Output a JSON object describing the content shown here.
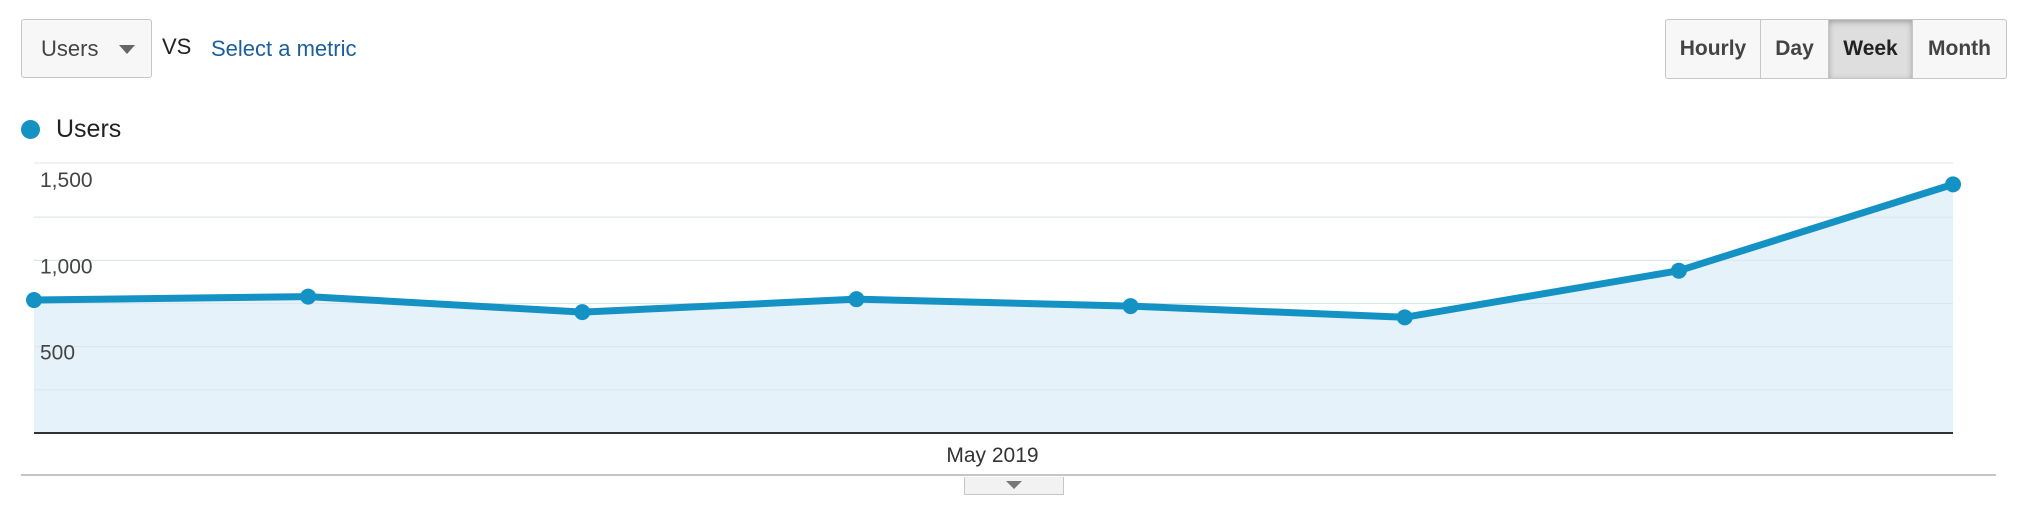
{
  "metric_selector": {
    "label": "Users",
    "icon": "caret-down-icon"
  },
  "vs_label": "VS",
  "select_metric_link": "Select a metric",
  "granularity": {
    "options": [
      "Hourly",
      "Day",
      "Week",
      "Month"
    ],
    "selected": "Week"
  },
  "legend": {
    "label": "Users",
    "color": "#1592c4"
  },
  "expand_icon": "chevron-down-icon",
  "chart_data": {
    "type": "area",
    "series": [
      {
        "name": "Users",
        "color": "#1592c4",
        "fill": "#e6f2f9",
        "values": [
          770,
          790,
          700,
          775,
          735,
          670,
          940,
          1440
        ]
      }
    ],
    "x": [
      "",
      "",
      "",
      "",
      "",
      "",
      "",
      ""
    ],
    "xlabel": "",
    "ylabel": "",
    "x_tick_labels": [
      "May 2019"
    ],
    "y_ticks": [
      500,
      1000,
      1500
    ],
    "y_tick_labels": [
      "500",
      "1,000",
      "1,500"
    ],
    "ylim": [
      0,
      1500
    ],
    "grid": true,
    "legend_position": "top-left"
  }
}
